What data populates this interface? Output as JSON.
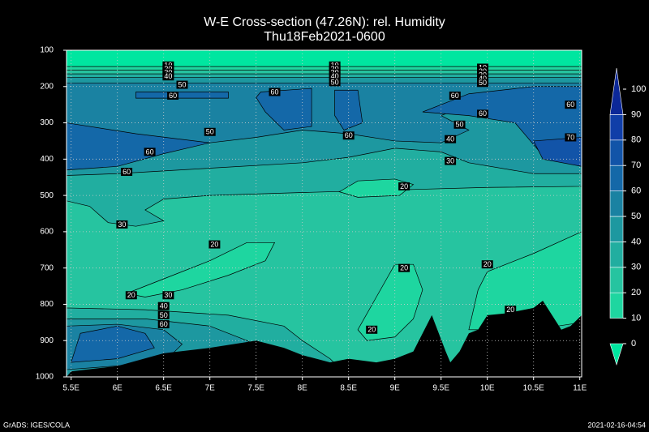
{
  "chart_data": {
    "type": "contour",
    "title": "W-E Cross-section (47.26N): rel. Humidity",
    "subtitle": "Thu18Feb2021-0600",
    "footer_left": "GrADS: IGES/COLA",
    "footer_right": "2021-02-16-04:54",
    "xlim": [
      5.45,
      11.02
    ],
    "ylim": [
      1000,
      100
    ],
    "xticks": [
      {
        "value": 5.5,
        "label": "5.5E"
      },
      {
        "value": 6,
        "label": "6E"
      },
      {
        "value": 6.5,
        "label": "6.5E"
      },
      {
        "value": 7,
        "label": "7E"
      },
      {
        "value": 7.5,
        "label": "7.5E"
      },
      {
        "value": 8,
        "label": "8E"
      },
      {
        "value": 8.5,
        "label": "8.5E"
      },
      {
        "value": 9,
        "label": "9E"
      },
      {
        "value": 9.5,
        "label": "9.5E"
      },
      {
        "value": 10,
        "label": "10E"
      },
      {
        "value": 10.5,
        "label": "10.5E"
      },
      {
        "value": 11,
        "label": "11E"
      }
    ],
    "yticks": [
      100,
      200,
      300,
      400,
      500,
      600,
      700,
      800,
      900,
      1000
    ],
    "grid": true,
    "levels": [
      0,
      10,
      20,
      30,
      40,
      50,
      60,
      70,
      80,
      90,
      100
    ],
    "colors": [
      "#00e6a0",
      "#1ed6a0",
      "#26c4a0",
      "#21aea0",
      "#1d98a0",
      "#1a82a2",
      "#1468a8",
      "#1254a8",
      "#103ea8",
      "#0c2898"
    ],
    "regions": [
      {
        "level": 0,
        "x": [
          5.45,
          11.02,
          11.02,
          5.45
        ],
        "y": [
          100,
          100,
          1000,
          1000
        ]
      },
      {
        "level": 10,
        "x": [
          5.45,
          11.02,
          11.02,
          5.45
        ],
        "y": [
          145,
          145,
          1000,
          1000
        ]
      },
      {
        "level": 20,
        "x": [
          5.45,
          11.02,
          11.02,
          5.45
        ],
        "y": [
          155,
          155,
          1000,
          1000
        ]
      },
      {
        "level": 30,
        "x": [
          5.45,
          11.02,
          11.02,
          10,
          9,
          8,
          7,
          6.5,
          6.3,
          6.5,
          6.2,
          5.9,
          5.7,
          5.45
        ],
        "y": [
          165,
          165,
          475,
          478,
          485,
          492,
          500,
          510,
          540,
          570,
          585,
          575,
          530,
          515
        ]
      },
      {
        "level": 40,
        "x": [
          5.45,
          11.02,
          11.02,
          10.5,
          9.8,
          9.5,
          9,
          8.5,
          8,
          7,
          6,
          5.45
        ],
        "y": [
          175,
          175,
          440,
          440,
          410,
          380,
          370,
          395,
          410,
          425,
          440,
          445
        ]
      },
      {
        "level": 50,
        "x": [
          5.45,
          11.02,
          11.02,
          10.5,
          10,
          9.6,
          9.5,
          9.8,
          9.5,
          9,
          8.5,
          8,
          7.5,
          7,
          6.5,
          6,
          5.45
        ],
        "y": [
          190,
          190,
          330,
          310,
          280,
          270,
          280,
          320,
          355,
          350,
          330,
          320,
          340,
          355,
          375,
          390,
          395
        ]
      },
      {
        "level": 60,
        "x": [
          5.45,
          6.2,
          7,
          6.5,
          6,
          5.45
        ],
        "y": [
          300,
          330,
          355,
          385,
          420,
          430
        ]
      },
      {
        "level": 60,
        "x": [
          6.2,
          7.2,
          7.2,
          6.2
        ],
        "y": [
          215,
          215,
          232,
          232
        ]
      },
      {
        "level": 60,
        "x": [
          7.55,
          8.1,
          8.1,
          7.8,
          7.6,
          7.5
        ],
        "y": [
          215,
          205,
          310,
          320,
          270,
          230
        ]
      },
      {
        "level": 60,
        "x": [
          8.35,
          8.6,
          8.65,
          8.45,
          8.35
        ],
        "y": [
          210,
          210,
          300,
          320,
          280
        ]
      },
      {
        "level": 60,
        "x": [
          9.3,
          9.8,
          10.5,
          11.02,
          11.02,
          10.6,
          10.3,
          9.8
        ],
        "y": [
          270,
          220,
          200,
          200,
          420,
          390,
          300,
          280
        ]
      },
      {
        "level": 70,
        "x": [
          10.5,
          11.02,
          11.02,
          10.6
        ],
        "y": [
          350,
          340,
          420,
          400
        ]
      },
      {
        "level": 10,
        "x": [
          8.4,
          8.6,
          9,
          9.2,
          9.05,
          8.6
        ],
        "y": [
          490,
          460,
          455,
          470,
          500,
          505
        ]
      },
      {
        "level": 10,
        "x": [
          6.1,
          6.6,
          7,
          7.4,
          7.7,
          7.6,
          7.2,
          6.7,
          6.3
        ],
        "y": [
          770,
          720,
          680,
          630,
          630,
          680,
          720,
          760,
          780
        ]
      },
      {
        "level": 10,
        "x": [
          8.6,
          8.8,
          9,
          9.2,
          9.3,
          9.2,
          9,
          8.7
        ],
        "y": [
          870,
          780,
          690,
          690,
          760,
          840,
          890,
          900
        ]
      },
      {
        "level": 10,
        "x": [
          9.8,
          9.9,
          10,
          10.5,
          11.02,
          11.02,
          10.5
        ],
        "y": [
          870,
          760,
          710,
          660,
          600,
          850,
          870
        ]
      },
      {
        "level": 30,
        "x": [
          5.45,
          6.3,
          7.2,
          7.8,
          8,
          8.3,
          8.5,
          5.45
        ],
        "y": [
          810,
          815,
          830,
          860,
          900,
          950,
          1000,
          1000
        ]
      },
      {
        "level": 40,
        "x": [
          5.45,
          6.3,
          7,
          7.4,
          7.8,
          7.9,
          5.45
        ],
        "y": [
          840,
          840,
          860,
          900,
          950,
          1000,
          1000
        ]
      },
      {
        "level": 50,
        "x": [
          5.45,
          6,
          6.5,
          6.7,
          6.5,
          5.45
        ],
        "y": [
          860,
          855,
          870,
          910,
          960,
          980
        ]
      },
      {
        "level": 60,
        "x": [
          5.6,
          6,
          6.3,
          6.4,
          6,
          5.5
        ],
        "y": [
          880,
          860,
          880,
          920,
          950,
          960
        ]
      }
    ],
    "terrain": {
      "x": [
        5.45,
        5.5,
        6,
        6.5,
        7,
        7.5,
        7.8,
        8,
        8.3,
        8.5,
        8.8,
        9,
        9.2,
        9.3,
        9.4,
        9.55,
        9.6,
        9.7,
        9.8,
        9.9,
        10,
        10.2,
        10.5,
        10.6,
        10.7,
        10.8,
        10.9,
        11.02,
        11.02
      ],
      "y": [
        1000,
        985,
        970,
        935,
        920,
        900,
        920,
        940,
        960,
        950,
        960,
        950,
        930,
        880,
        830,
        930,
        960,
        930,
        880,
        870,
        830,
        825,
        810,
        790,
        830,
        870,
        860,
        830,
        1000
      ]
    },
    "contour_labels": {
      "x": [
        6.55,
        6.55,
        6.55,
        6.55,
        6.7,
        8.35,
        8.35,
        8.35,
        8.35,
        8.35,
        9.95,
        9.95,
        9.95,
        9.95,
        9.95,
        6.6,
        7.7,
        7,
        6.35,
        6.1,
        8.5,
        9.65,
        9.7,
        9.95,
        9.6,
        9.6,
        10.9,
        10.9,
        9.1,
        6.05,
        7.05,
        9.1,
        10,
        6.15,
        6.55,
        6.5,
        6.5,
        6.5,
        8.75,
        10.25
      ],
      "y": [
        142,
        152,
        162,
        172,
        195,
        142,
        152,
        162,
        172,
        188,
        148,
        158,
        168,
        178,
        190,
        225,
        215,
        325,
        380,
        435,
        335,
        225,
        305,
        275,
        345,
        405,
        250,
        340,
        475,
        580,
        635,
        700,
        690,
        775,
        775,
        805,
        830,
        855,
        870,
        815
      ],
      "values": [
        10,
        20,
        30,
        40,
        50,
        10,
        20,
        30,
        40,
        50,
        10,
        20,
        30,
        40,
        50,
        60,
        60,
        50,
        60,
        60,
        60,
        60,
        50,
        60,
        40,
        30,
        60,
        70,
        20,
        30,
        20,
        20,
        20,
        20,
        30,
        40,
        50,
        60,
        20,
        20
      ]
    }
  }
}
